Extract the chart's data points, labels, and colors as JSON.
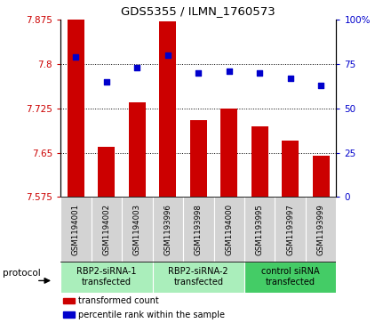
{
  "title": "GDS5355 / ILMN_1760573",
  "samples": [
    "GSM1194001",
    "GSM1194002",
    "GSM1194003",
    "GSM1193996",
    "GSM1193998",
    "GSM1194000",
    "GSM1193995",
    "GSM1193997",
    "GSM1193999"
  ],
  "bar_values": [
    7.875,
    7.66,
    7.735,
    7.872,
    7.705,
    7.725,
    7.695,
    7.67,
    7.645
  ],
  "percentile_values": [
    79,
    65,
    73,
    80,
    70,
    71,
    70,
    67,
    63
  ],
  "ylim": [
    7.575,
    7.875
  ],
  "y2lim": [
    0,
    100
  ],
  "yticks": [
    7.575,
    7.65,
    7.725,
    7.8,
    7.875
  ],
  "y2ticks": [
    0,
    25,
    50,
    75,
    100
  ],
  "bar_color": "#cc0000",
  "dot_color": "#0000cc",
  "groups": [
    {
      "label": "RBP2-siRNA-1\ntransfected",
      "start": 0,
      "end": 3,
      "color": "#aaeebb"
    },
    {
      "label": "RBP2-siRNA-2\ntransfected",
      "start": 3,
      "end": 6,
      "color": "#aaeebb"
    },
    {
      "label": "control siRNA\ntransfected",
      "start": 6,
      "end": 9,
      "color": "#44cc66"
    }
  ],
  "legend_bar_label": "transformed count",
  "legend_dot_label": "percentile rank within the sample",
  "protocol_label": "protocol",
  "bar_width": 0.55,
  "background_color": "#ffffff",
  "plot_bg_color": "#ffffff",
  "tick_area_bg": "#d3d3d3",
  "gridline_ticks": [
    7.65,
    7.725,
    7.8
  ]
}
